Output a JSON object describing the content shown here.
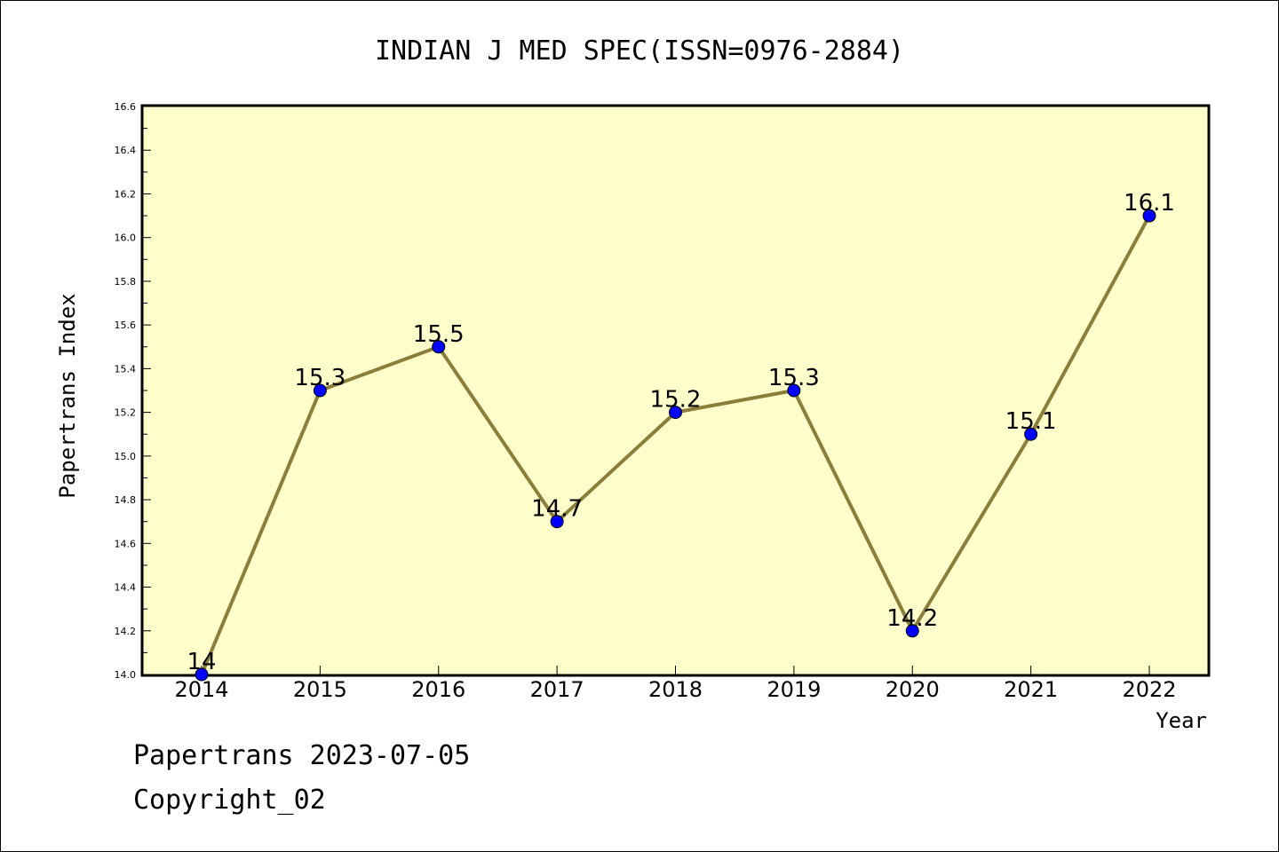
{
  "chart_data": {
    "type": "line",
    "title": "INDIAN J MED SPEC(ISSN=0976-2884)",
    "xlabel": "Year",
    "ylabel": "Papertrans Index",
    "categories": [
      "2014",
      "2015",
      "2016",
      "2017",
      "2018",
      "2019",
      "2020",
      "2021",
      "2022"
    ],
    "values": [
      14,
      15.3,
      15.5,
      14.7,
      15.2,
      15.3,
      14.2,
      15.1,
      16.1
    ],
    "data_labels": [
      "14",
      "15.3",
      "15.5",
      "14.7",
      "15.2",
      "15.3",
      "14.2",
      "15.1",
      "16.1"
    ],
    "ylim": [
      14.0,
      16.6
    ],
    "yticks": [
      "14.0",
      "14.2",
      "14.4",
      "14.6",
      "14.8",
      "15.0",
      "15.2",
      "15.4",
      "15.6",
      "15.8",
      "16.0",
      "16.2",
      "16.4",
      "16.6"
    ],
    "grid": false,
    "colors": {
      "plot_background": "#ffffcc",
      "line": "#8b7d3a",
      "marker": "#0000ff"
    }
  },
  "footer": {
    "date_text": "Papertrans 2023-07-05",
    "copyright_text": "Copyright_02"
  }
}
